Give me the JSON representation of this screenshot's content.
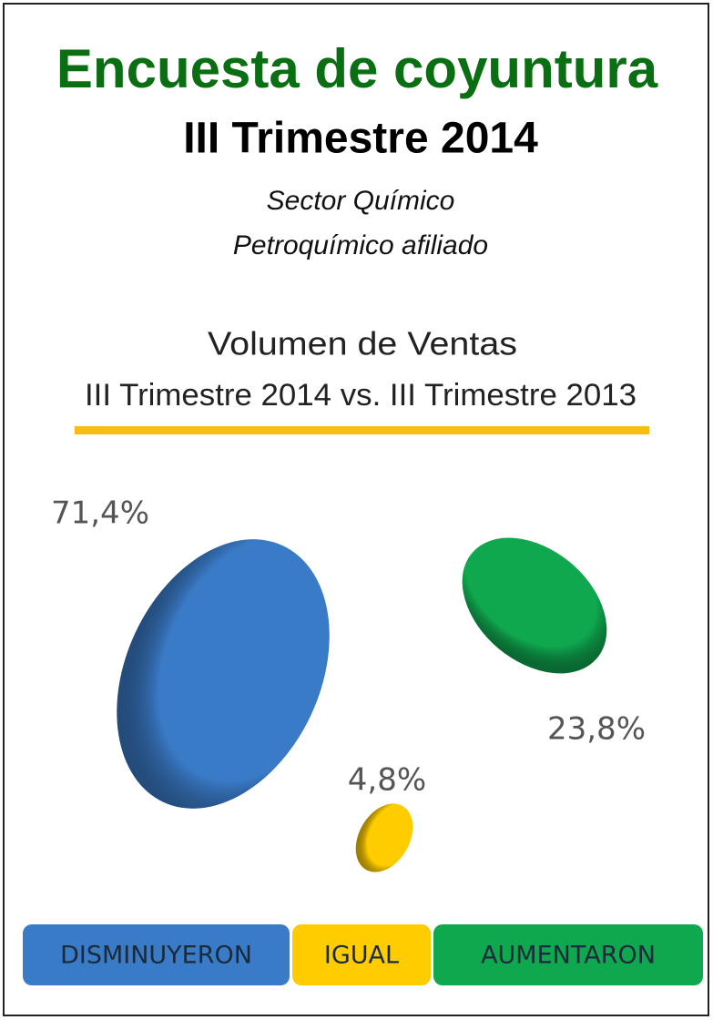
{
  "chart_data": {
    "type": "bubble",
    "title": "Encuesta de coyuntura",
    "subtitle": "III Trimestre 2014",
    "sector": [
      "Sector Químico",
      "Petroquímico afiliado"
    ],
    "chart_title": "Volumen de Ventas",
    "chart_subtitle": "III Trimestre 2014 vs. III Trimestre 2013",
    "categories": [
      "DISMINUYERON",
      "IGUAL",
      "AUMENTARON"
    ],
    "values": [
      71.4,
      4.8,
      23.8
    ],
    "value_labels": [
      "71,4%",
      "4,8%",
      "23,8%"
    ],
    "colors": [
      "#3a7bc8",
      "#ffcc00",
      "#0fa84f"
    ]
  }
}
